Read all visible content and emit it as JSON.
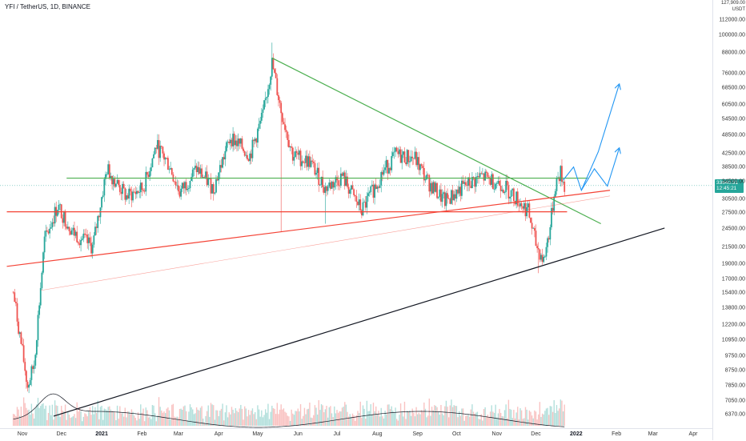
{
  "symbol": {
    "title": "YFI / TetherUS, 1D, BINANCE"
  },
  "colors": {
    "up": "#26a69a",
    "down": "#ef5350",
    "resistance_green": "#4caf50",
    "support_red": "#f44336",
    "trend_black": "#131722",
    "projection_blue": "#2196f3"
  },
  "price_axis": {
    "header": [
      "127,909.00",
      "USDT"
    ],
    "current_price": "33640.31",
    "countdown": "12:45:21",
    "ticks": [
      "112000.00",
      "100000.00",
      "88000.00",
      "76000.00",
      "68500.00",
      "60500.00",
      "54500.00",
      "48500.00",
      "42500.00",
      "38500.00",
      "34500.00",
      "30500.00",
      "27500.00",
      "24500.00",
      "21500.00",
      "19000.00",
      "17000.00",
      "15400.00",
      "13800.00",
      "12200.00",
      "10950.00",
      "9750.00",
      "8750.00",
      "7850.00",
      "7050.00",
      "6370.00"
    ]
  },
  "time_axis": {
    "ticks": [
      {
        "label": "Nov",
        "bold": false
      },
      {
        "label": "Dec",
        "bold": false
      },
      {
        "label": "2021",
        "bold": true
      },
      {
        "label": "Feb",
        "bold": false
      },
      {
        "label": "Mar",
        "bold": false
      },
      {
        "label": "Apr",
        "bold": false
      },
      {
        "label": "May",
        "bold": false
      },
      {
        "label": "Jun",
        "bold": false
      },
      {
        "label": "Jul",
        "bold": false
      },
      {
        "label": "Aug",
        "bold": false
      },
      {
        "label": "Sep",
        "bold": false
      },
      {
        "label": "Oct",
        "bold": false
      },
      {
        "label": "Nov",
        "bold": false
      },
      {
        "label": "Dec",
        "bold": false
      },
      {
        "label": "2022",
        "bold": true
      },
      {
        "label": "Feb",
        "bold": false
      },
      {
        "label": "Mar",
        "bold": false
      },
      {
        "label": "Apr",
        "bold": false
      }
    ]
  },
  "chart_data": {
    "type": "candlestick",
    "scale": "log",
    "x_unit": "date",
    "price_anchors": [
      {
        "date": "2020-10-25",
        "price": 15500
      },
      {
        "date": "2020-11-05",
        "price": 7800
      },
      {
        "date": "2020-11-10",
        "price": 9200
      },
      {
        "date": "2020-11-18",
        "price": 22500
      },
      {
        "date": "2020-11-28",
        "price": 29000
      },
      {
        "date": "2020-12-10",
        "price": 24000
      },
      {
        "date": "2020-12-25",
        "price": 21500
      },
      {
        "date": "2021-01-05",
        "price": 38000
      },
      {
        "date": "2021-01-20",
        "price": 31000
      },
      {
        "date": "2021-02-02",
        "price": 33000
      },
      {
        "date": "2021-02-12",
        "price": 45000
      },
      {
        "date": "2021-02-22",
        "price": 39000
      },
      {
        "date": "2021-03-02",
        "price": 32000
      },
      {
        "date": "2021-03-15",
        "price": 38000
      },
      {
        "date": "2021-03-28",
        "price": 33000
      },
      {
        "date": "2021-04-10",
        "price": 48000
      },
      {
        "date": "2021-04-25",
        "price": 42000
      },
      {
        "date": "2021-05-05",
        "price": 56000
      },
      {
        "date": "2021-05-12",
        "price": 82000
      },
      {
        "date": "2021-05-19",
        "price": 58000
      },
      {
        "date": "2021-05-28",
        "price": 42000
      },
      {
        "date": "2021-06-10",
        "price": 40000
      },
      {
        "date": "2021-06-22",
        "price": 33000
      },
      {
        "date": "2021-07-05",
        "price": 36000
      },
      {
        "date": "2021-07-20",
        "price": 28000
      },
      {
        "date": "2021-08-05",
        "price": 37000
      },
      {
        "date": "2021-08-15",
        "price": 42000
      },
      {
        "date": "2021-08-30",
        "price": 41000
      },
      {
        "date": "2021-09-08",
        "price": 35000
      },
      {
        "date": "2021-09-22",
        "price": 30000
      },
      {
        "date": "2021-10-05",
        "price": 33000
      },
      {
        "date": "2021-10-20",
        "price": 36000
      },
      {
        "date": "2021-11-05",
        "price": 34000
      },
      {
        "date": "2021-11-15",
        "price": 31000
      },
      {
        "date": "2021-11-25",
        "price": 28000
      },
      {
        "date": "2021-12-01",
        "price": 22000
      },
      {
        "date": "2021-12-07",
        "price": 19500
      },
      {
        "date": "2021-12-12",
        "price": 25000
      },
      {
        "date": "2021-12-16",
        "price": 34000
      },
      {
        "date": "2021-12-20",
        "price": 37000
      },
      {
        "date": "2021-12-23",
        "price": 33640
      }
    ],
    "x_range": [
      "2020-10-20",
      "2022-04-30"
    ],
    "y_range": [
      6000,
      128000
    ],
    "lines": [
      {
        "name": "resistance-horizontal",
        "color": "green",
        "points": [
          [
            "2020-12-05",
            35500
          ],
          [
            "2022-01-10",
            35500
          ]
        ]
      },
      {
        "name": "descending-trendline",
        "color": "green",
        "points": [
          [
            "2021-05-12",
            85000
          ],
          [
            "2022-01-20",
            25500
          ]
        ]
      },
      {
        "name": "support-horizontal",
        "color": "red",
        "points": [
          [
            "2020-10-20",
            27800
          ],
          [
            "2021-12-25",
            27800
          ]
        ]
      },
      {
        "name": "rising-support",
        "color": "red",
        "points": [
          [
            "2020-10-20",
            18700
          ],
          [
            "2022-01-27",
            32500
          ]
        ]
      },
      {
        "name": "rising-support-faint",
        "color": "red",
        "points": [
          [
            "2020-11-15",
            15700
          ],
          [
            "2022-01-27",
            31200
          ]
        ]
      },
      {
        "name": "long-trendline",
        "color": "black",
        "points": [
          [
            "2020-11-25",
            6300
          ],
          [
            "2022-03-10",
            24700
          ]
        ]
      }
    ],
    "projections": [
      {
        "points": [
          [
            "2021-12-22",
            35000
          ],
          [
            "2021-12-30",
            38500
          ],
          [
            "2022-01-05",
            32500
          ],
          [
            "2022-01-18",
            43000
          ],
          [
            "2022-02-03",
            70000
          ]
        ]
      },
      {
        "points": [
          [
            "2022-01-05",
            32500
          ],
          [
            "2022-01-15",
            38000
          ],
          [
            "2022-01-25",
            33500
          ],
          [
            "2022-02-03",
            44000
          ]
        ]
      }
    ]
  }
}
